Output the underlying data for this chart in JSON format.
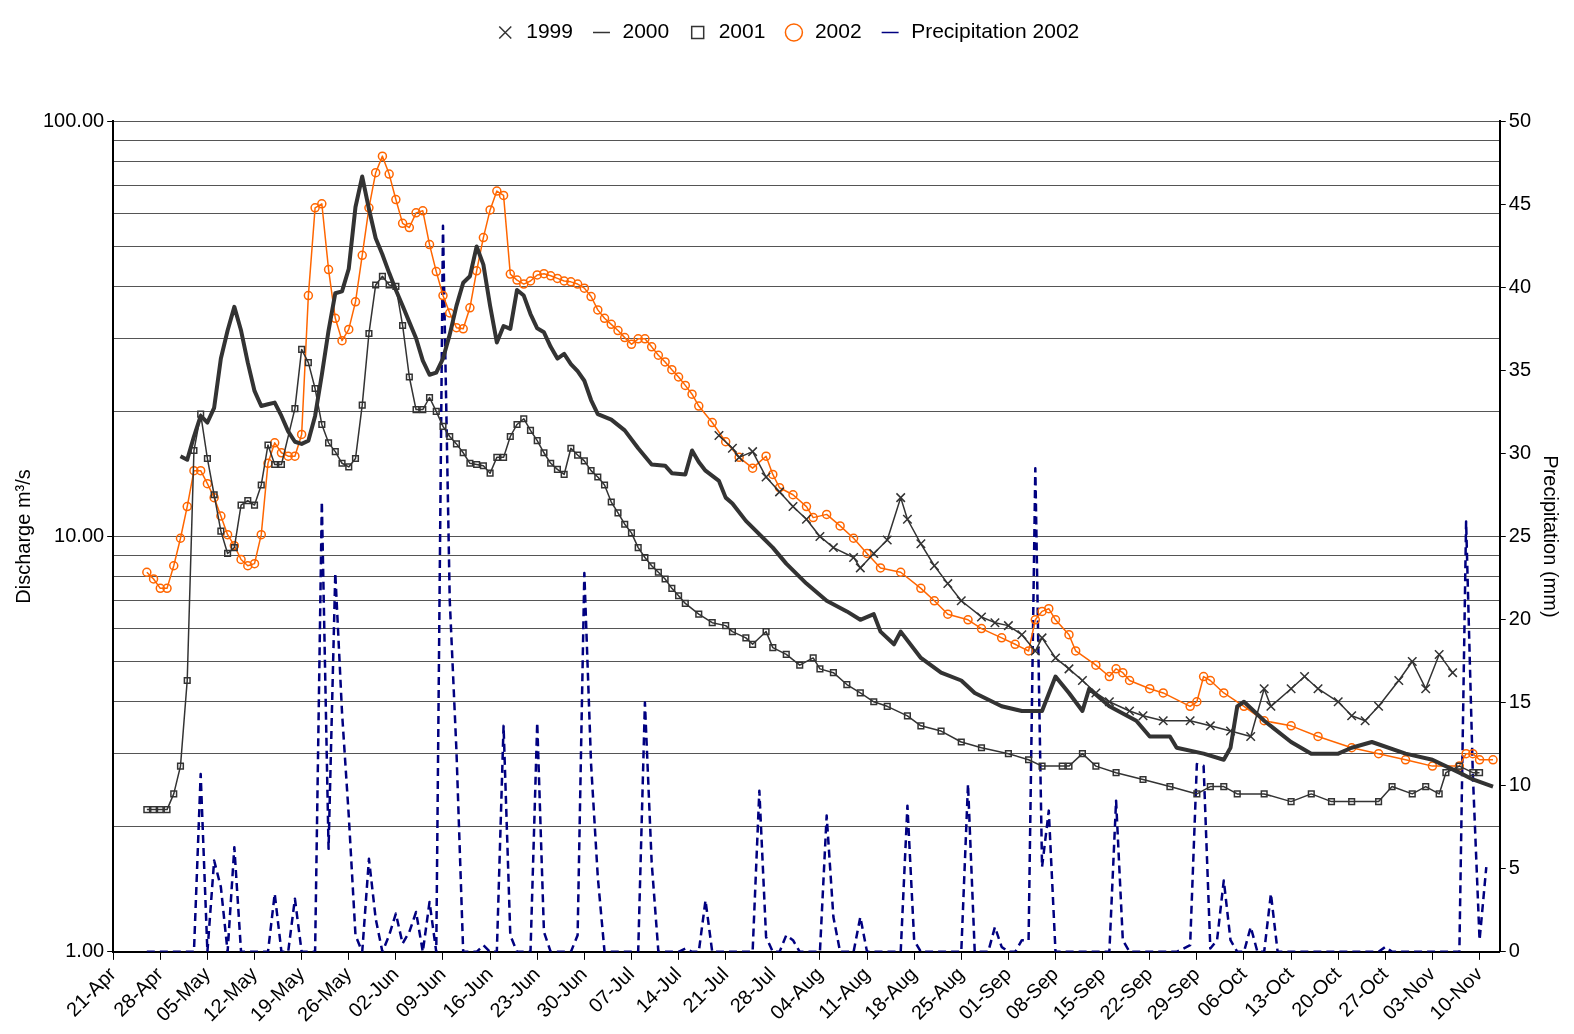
{
  "chart_data": {
    "type": "line",
    "ylabel": "Discharge m³/s",
    "y2label": "Precipitation (mm)",
    "legend": "top",
    "grid": "y",
    "log": "y",
    "xlim": [
      "--04-21",
      "--11-13"
    ],
    "xticks": [
      {
        "value": "--04-21",
        "label": "21-Apr"
      },
      {
        "value": "--04-28",
        "label": "28-Apr"
      },
      {
        "value": "--05-05",
        "label": "05-May"
      },
      {
        "value": "--05-12",
        "label": "12-May"
      },
      {
        "value": "--05-19",
        "label": "19-May"
      },
      {
        "value": "--05-26",
        "label": "26-May"
      },
      {
        "value": "--06-02",
        "label": "02-Jun"
      },
      {
        "value": "--06-09",
        "label": "09-Jun"
      },
      {
        "value": "--06-16",
        "label": "16-Jun"
      },
      {
        "value": "--06-23",
        "label": "23-Jun"
      },
      {
        "value": "--06-30",
        "label": "30-Jun"
      },
      {
        "value": "--07-07",
        "label": "07-Jul"
      },
      {
        "value": "--07-14",
        "label": "14-Jul"
      },
      {
        "value": "--07-21",
        "label": "21-Jul"
      },
      {
        "value": "--07-28",
        "label": "28-Jul"
      },
      {
        "value": "--08-04",
        "label": "04-Aug"
      },
      {
        "value": "--08-11",
        "label": "11-Aug"
      },
      {
        "value": "--08-18",
        "label": "18-Aug"
      },
      {
        "value": "--08-25",
        "label": "25-Aug"
      },
      {
        "value": "--09-01",
        "label": "01-Sep"
      },
      {
        "value": "--09-08",
        "label": "08-Sep"
      },
      {
        "value": "--09-15",
        "label": "15-Sep"
      },
      {
        "value": "--09-22",
        "label": "22-Sep"
      },
      {
        "value": "--09-29",
        "label": "29-Sep"
      },
      {
        "value": "--10-06",
        "label": "06-Oct"
      },
      {
        "value": "--10-13",
        "label": "13-Oct"
      },
      {
        "value": "--10-20",
        "label": "20-Oct"
      },
      {
        "value": "--10-27",
        "label": "27-Oct"
      },
      {
        "value": "--11-03",
        "label": "03-Nov"
      },
      {
        "value": "--11-10",
        "label": "10-Nov"
      }
    ],
    "ylim": [
      1,
      100
    ],
    "yticks": [
      {
        "value": 1,
        "label": "1.00"
      },
      {
        "value": 2,
        "label": null
      },
      {
        "value": 3,
        "label": null
      },
      {
        "value": 4,
        "label": null
      },
      {
        "value": 5,
        "label": null
      },
      {
        "value": 6,
        "label": null
      },
      {
        "value": 7,
        "label": null
      },
      {
        "value": 8,
        "label": null
      },
      {
        "value": 9,
        "label": null
      },
      {
        "value": 10,
        "label": "10.00"
      },
      {
        "value": 20,
        "label": null
      },
      {
        "value": 30,
        "label": null
      },
      {
        "value": 40,
        "label": null
      },
      {
        "value": 50,
        "label": null
      },
      {
        "value": 60,
        "label": null
      },
      {
        "value": 70,
        "label": null
      },
      {
        "value": 80,
        "label": null
      },
      {
        "value": 90,
        "label": null
      },
      {
        "value": 100,
        "label": "100.00"
      }
    ],
    "y2lim": [
      0,
      50
    ],
    "y2ticks": [
      0,
      5,
      10,
      15,
      20,
      25,
      30,
      35,
      40,
      45,
      50
    ],
    "series": [
      {
        "name": "1999",
        "color": "#333333",
        "marker": "cross",
        "x": [
          "--07-20",
          "--07-22",
          "--07-23",
          "--07-25",
          "--07-27",
          "--07-29",
          "--07-31",
          "--08-02",
          "--08-04",
          "--08-06",
          "--08-09",
          "--08-10",
          "--08-12",
          "--08-14",
          "--08-16",
          "--08-17",
          "--08-19",
          "--08-21",
          "--08-23",
          "--08-25",
          "--08-28",
          "--08-30",
          "--09-01",
          "--09-03",
          "--09-05",
          "--09-06",
          "--09-08",
          "--09-10",
          "--09-12",
          "--09-14",
          "--09-16",
          "--09-19",
          "--09-21",
          "--09-24",
          "--09-28",
          "--10-01",
          "--10-04",
          "--10-07",
          "--10-09",
          "--10-10",
          "--10-13",
          "--10-15",
          "--10-17",
          "--10-20",
          "--10-22",
          "--10-24",
          "--10-26",
          "--10-29",
          "--10-31",
          "--11-02",
          "--11-04",
          "--11-06"
        ],
        "values": [
          17.5,
          16.3,
          15.5,
          16.0,
          13.9,
          12.8,
          11.8,
          11.0,
          10.0,
          9.4,
          8.9,
          8.4,
          9.1,
          9.8,
          12.4,
          11.0,
          9.6,
          8.5,
          7.7,
          7.0,
          6.4,
          6.2,
          6.1,
          5.8,
          5.3,
          5.7,
          5.1,
          4.8,
          4.5,
          4.2,
          4.0,
          3.8,
          3.7,
          3.6,
          3.6,
          3.5,
          3.4,
          3.3,
          4.3,
          3.9,
          4.3,
          4.6,
          4.3,
          4.0,
          3.7,
          3.6,
          3.9,
          4.5,
          5.0,
          4.3,
          5.2,
          4.7
        ]
      },
      {
        "name": "2000",
        "color": "#333333",
        "marker": "none",
        "x": [
          "--05-01",
          "--05-02",
          "--05-03",
          "--05-04",
          "--05-05",
          "--05-06",
          "--05-07",
          "--05-08",
          "--05-09",
          "--05-10",
          "--05-11",
          "--05-12",
          "--05-13",
          "--05-14",
          "--05-15",
          "--05-16",
          "--05-17",
          "--05-18",
          "--05-19",
          "--05-20",
          "--05-21",
          "--05-22",
          "--05-23",
          "--05-24",
          "--05-25",
          "--05-26",
          "--05-27",
          "--05-28",
          "--05-29",
          "--05-30",
          "--05-31",
          "--06-01",
          "--06-02",
          "--06-03",
          "--06-04",
          "--06-05",
          "--06-06",
          "--06-07",
          "--06-08",
          "--06-09",
          "--06-10",
          "--06-11",
          "--06-12",
          "--06-13",
          "--06-14",
          "--06-15",
          "--06-16",
          "--06-17",
          "--06-18",
          "--06-19",
          "--06-20",
          "--06-21",
          "--06-22",
          "--06-23",
          "--06-24",
          "--06-25",
          "--06-26",
          "--06-27",
          "--06-28",
          "--06-29",
          "--06-30",
          "--07-01",
          "--07-02",
          "--07-04",
          "--07-06",
          "--07-08",
          "--07-10",
          "--07-12",
          "--07-13",
          "--07-15",
          "--07-16",
          "--07-17",
          "--07-18",
          "--07-20",
          "--07-21",
          "--07-22",
          "--07-24",
          "--07-28",
          "--07-30",
          "--08-02",
          "--08-05",
          "--08-08",
          "--08-10",
          "--08-12",
          "--08-13",
          "--08-15",
          "--08-16",
          "--08-19",
          "--08-22",
          "--08-25",
          "--08-27",
          "--08-31",
          "--09-03",
          "--09-06",
          "--09-08",
          "--09-10",
          "--09-12",
          "--09-13",
          "--09-16",
          "--09-20",
          "--09-22",
          "--09-25",
          "--09-26",
          "--09-30",
          "--10-03",
          "--10-04",
          "--10-05",
          "--10-06",
          "--10-09",
          "--10-13",
          "--10-16",
          "--10-20",
          "--10-22",
          "--10-25",
          "--10-30",
          "--11-03",
          "--11-07",
          "--11-09",
          "--11-12"
        ],
        "values": [
          15.6,
          15.3,
          17.4,
          19.5,
          18.8,
          20.4,
          26.8,
          31.3,
          35.7,
          31.3,
          26.2,
          22.4,
          20.6,
          20.8,
          21.0,
          19.5,
          17.9,
          16.9,
          16.7,
          17.0,
          19.5,
          24.5,
          31.3,
          38.5,
          38.9,
          44.1,
          62.1,
          73.5,
          61.4,
          52.2,
          47.7,
          43.1,
          39.2,
          35.9,
          32.8,
          30.0,
          26.5,
          24.5,
          24.8,
          26.8,
          30.6,
          35.9,
          40.8,
          42.3,
          49.9,
          45.1,
          35.9,
          29.3,
          32.1,
          31.6,
          39.2,
          38.0,
          34.3,
          31.7,
          31.0,
          28.6,
          26.8,
          27.5,
          26.0,
          25.0,
          23.7,
          21.3,
          19.7,
          19.1,
          18.0,
          16.3,
          14.9,
          14.8,
          14.2,
          14.1,
          16.1,
          15.1,
          14.4,
          13.6,
          12.4,
          12.0,
          10.9,
          9.4,
          8.6,
          7.7,
          7.0,
          6.6,
          6.3,
          6.5,
          5.9,
          5.5,
          5.9,
          5.1,
          4.7,
          4.5,
          4.2,
          3.9,
          3.8,
          3.8,
          4.6,
          4.2,
          3.8,
          4.3,
          3.9,
          3.6,
          3.3,
          3.3,
          3.1,
          3.0,
          2.9,
          3.1,
          3.9,
          4.0,
          3.6,
          3.2,
          3.0,
          3.0,
          3.1,
          3.2,
          3.0,
          2.9,
          2.7,
          2.6,
          2.5
        ]
      },
      {
        "name": "2001",
        "color": "#333333",
        "marker": "square",
        "x": [
          "--04-26",
          "--04-27",
          "--04-28",
          "--04-29",
          "--04-30",
          "--05-01",
          "--05-02",
          "--05-03",
          "--05-04",
          "--05-05",
          "--05-06",
          "--05-07",
          "--05-08",
          "--05-09",
          "--05-10",
          "--05-11",
          "--05-12",
          "--05-13",
          "--05-14",
          "--05-15",
          "--05-16",
          "--05-18",
          "--05-19",
          "--05-20",
          "--05-21",
          "--05-22",
          "--05-23",
          "--05-24",
          "--05-25",
          "--05-26",
          "--05-27",
          "--05-28",
          "--05-29",
          "--05-30",
          "--05-31",
          "--06-01",
          "--06-02",
          "--06-03",
          "--06-04",
          "--06-05",
          "--06-06",
          "--06-07",
          "--06-08",
          "--06-09",
          "--06-10",
          "--06-11",
          "--06-12",
          "--06-13",
          "--06-14",
          "--06-15",
          "--06-16",
          "--06-17",
          "--06-18",
          "--06-19",
          "--06-20",
          "--06-21",
          "--06-22",
          "--06-23",
          "--06-24",
          "--06-25",
          "--06-26",
          "--06-27",
          "--06-28",
          "--06-29",
          "--06-30",
          "--07-01",
          "--07-02",
          "--07-03",
          "--07-04",
          "--07-05",
          "--07-06",
          "--07-07",
          "--07-08",
          "--07-09",
          "--07-10",
          "--07-11",
          "--07-12",
          "--07-13",
          "--07-14",
          "--07-15",
          "--07-17",
          "--07-19",
          "--07-21",
          "--07-22",
          "--07-24",
          "--07-25",
          "--07-27",
          "--07-28",
          "--07-30",
          "--08-01",
          "--08-03",
          "--08-04",
          "--08-06",
          "--08-08",
          "--08-10",
          "--08-12",
          "--08-14",
          "--08-17",
          "--08-19",
          "--08-22",
          "--08-25",
          "--08-28",
          "--09-01",
          "--09-04",
          "--09-06",
          "--09-09",
          "--09-10",
          "--09-12",
          "--09-14",
          "--09-17",
          "--09-21",
          "--09-25",
          "--09-29",
          "--10-01",
          "--10-03",
          "--10-05",
          "--10-09",
          "--10-13",
          "--10-16",
          "--10-19",
          "--10-22",
          "--10-26",
          "--10-28",
          "--10-31",
          "--11-02",
          "--11-04",
          "--11-05",
          "--11-07",
          "--11-09",
          "--11-10"
        ],
        "values": [
          2.2,
          2.2,
          2.2,
          2.2,
          2.4,
          2.8,
          4.5,
          16.1,
          19.7,
          15.4,
          12.6,
          10.3,
          9.1,
          9.4,
          11.9,
          12.2,
          11.9,
          13.3,
          16.6,
          14.9,
          14.9,
          20.3,
          28.2,
          26.2,
          22.7,
          18.6,
          16.8,
          16.0,
          15.0,
          14.7,
          15.4,
          20.7,
          30.8,
          40.3,
          42.3,
          40.3,
          40.0,
          32.2,
          24.2,
          20.2,
          20.2,
          21.6,
          20.0,
          18.4,
          17.4,
          16.7,
          15.9,
          15.0,
          14.9,
          14.8,
          14.2,
          15.5,
          15.5,
          17.4,
          18.6,
          19.2,
          18.0,
          17.0,
          15.9,
          15.0,
          14.5,
          14.1,
          16.3,
          15.7,
          15.2,
          14.4,
          13.9,
          13.3,
          12.1,
          11.4,
          10.7,
          10.2,
          9.4,
          8.9,
          8.5,
          8.2,
          7.9,
          7.5,
          7.2,
          6.9,
          6.5,
          6.2,
          6.1,
          5.9,
          5.7,
          5.5,
          5.9,
          5.4,
          5.2,
          4.9,
          5.1,
          4.8,
          4.7,
          4.4,
          4.2,
          4.0,
          3.9,
          3.7,
          3.5,
          3.4,
          3.2,
          3.1,
          3.0,
          2.9,
          2.8,
          2.8,
          2.8,
          3.0,
          2.8,
          2.7,
          2.6,
          2.5,
          2.4,
          2.5,
          2.5,
          2.4,
          2.4,
          2.3,
          2.4,
          2.3,
          2.3,
          2.3,
          2.5,
          2.4,
          2.5,
          2.4,
          2.7,
          2.8,
          2.7,
          2.7
        ]
      },
      {
        "name": "2002",
        "color": "#ff6600",
        "marker": "circle",
        "x": [
          "--04-26",
          "--04-27",
          "--04-28",
          "--04-29",
          "--04-30",
          "--05-01",
          "--05-02",
          "--05-03",
          "--05-04",
          "--05-05",
          "--05-06",
          "--05-07",
          "--05-08",
          "--05-09",
          "--05-10",
          "--05-11",
          "--05-12",
          "--05-13",
          "--05-14",
          "--05-15",
          "--05-16",
          "--05-17",
          "--05-18",
          "--05-19",
          "--05-20",
          "--05-21",
          "--05-22",
          "--05-23",
          "--05-24",
          "--05-25",
          "--05-26",
          "--05-27",
          "--05-28",
          "--05-29",
          "--05-30",
          "--05-31",
          "--06-01",
          "--06-02",
          "--06-03",
          "--06-04",
          "--06-05",
          "--06-06",
          "--06-07",
          "--06-08",
          "--06-09",
          "--06-10",
          "--06-11",
          "--06-12",
          "--06-13",
          "--06-14",
          "--06-15",
          "--06-16",
          "--06-17",
          "--06-18",
          "--06-19",
          "--06-20",
          "--06-21",
          "--06-22",
          "--06-23",
          "--06-24",
          "--06-25",
          "--06-26",
          "--06-27",
          "--06-28",
          "--06-29",
          "--06-30",
          "--07-01",
          "--07-02",
          "--07-03",
          "--07-04",
          "--07-05",
          "--07-06",
          "--07-07",
          "--07-08",
          "--07-09",
          "--07-10",
          "--07-11",
          "--07-12",
          "--07-13",
          "--07-14",
          "--07-15",
          "--07-16",
          "--07-17",
          "--07-19",
          "--07-21",
          "--07-23",
          "--07-25",
          "--07-27",
          "--07-28",
          "--07-29",
          "--07-31",
          "--08-02",
          "--08-03",
          "--08-05",
          "--08-07",
          "--08-09",
          "--08-11",
          "--08-13",
          "--08-16",
          "--08-19",
          "--08-21",
          "--08-23",
          "--08-26",
          "--08-28",
          "--08-31",
          "--09-02",
          "--09-04",
          "--09-05",
          "--09-06",
          "--09-07",
          "--09-08",
          "--09-10",
          "--09-11",
          "--09-14",
          "--09-16",
          "--09-17",
          "--09-18",
          "--09-19",
          "--09-22",
          "--09-24",
          "--09-28",
          "--09-29",
          "--09-30",
          "--10-01",
          "--10-03",
          "--10-06",
          "--10-09",
          "--10-13",
          "--10-17",
          "--10-22",
          "--10-26",
          "--10-30",
          "--11-03",
          "--11-07",
          "--11-08",
          "--11-09",
          "--11-10",
          "--11-12"
        ],
        "values": [
          8.2,
          7.9,
          7.5,
          7.5,
          8.5,
          9.9,
          11.8,
          14.4,
          14.4,
          13.4,
          12.4,
          11.2,
          10.1,
          9.5,
          8.8,
          8.5,
          8.6,
          10.1,
          15.0,
          16.8,
          15.9,
          15.6,
          15.6,
          17.6,
          38.0,
          61.8,
          63.2,
          43.9,
          33.5,
          29.6,
          31.5,
          36.7,
          47.5,
          61.8,
          75.1,
          82.3,
          74.5,
          64.7,
          56.7,
          55.4,
          60.1,
          60.8,
          50.4,
          43.4,
          38.0,
          34.5,
          31.8,
          31.6,
          35.5,
          43.6,
          52.4,
          61.1,
          67.8,
          66.2,
          42.8,
          41.4,
          40.5,
          41.2,
          42.6,
          42.9,
          42.4,
          41.8,
          41.2,
          41.0,
          40.5,
          39.6,
          37.8,
          35.1,
          33.5,
          32.4,
          31.3,
          30.1,
          29.0,
          29.9,
          29.9,
          28.6,
          27.3,
          26.3,
          25.2,
          24.2,
          23.1,
          22.0,
          20.6,
          18.8,
          16.9,
          15.5,
          14.6,
          15.6,
          14.1,
          13.1,
          12.6,
          11.8,
          11.1,
          11.3,
          10.6,
          9.9,
          9.1,
          8.4,
          8.2,
          7.5,
          7.0,
          6.5,
          6.3,
          6.0,
          5.7,
          5.5,
          5.3,
          6.3,
          6.6,
          6.7,
          6.3,
          5.8,
          5.3,
          4.9,
          4.6,
          4.8,
          4.7,
          4.5,
          4.3,
          4.2,
          3.9,
          4.0,
          4.6,
          4.5,
          4.2,
          3.9,
          3.6,
          3.5,
          3.3,
          3.1,
          3.0,
          2.9,
          2.8,
          2.8,
          3.0,
          3.0,
          2.9,
          2.9
        ]
      },
      {
        "name": "Precipitation 2002",
        "color": "#000080",
        "marker": "none",
        "line_style": "dashed",
        "axis": "y2",
        "x": [
          "--04-26",
          "--05-03",
          "--05-04",
          "--05-05",
          "--05-06",
          "--05-07",
          "--05-08",
          "--05-09",
          "--05-10",
          "--05-14",
          "--05-15",
          "--05-16",
          "--05-17",
          "--05-18",
          "--05-19",
          "--05-21",
          "--05-22",
          "--05-23",
          "--05-24",
          "--05-25",
          "--05-26",
          "--05-27",
          "--05-28",
          "--05-29",
          "--05-30",
          "--05-31",
          "--06-01",
          "--06-02",
          "--06-03",
          "--06-04",
          "--06-05",
          "--06-06",
          "--06-07",
          "--06-08",
          "--06-09",
          "--06-10",
          "--06-11",
          "--06-12",
          "--06-14",
          "--06-15",
          "--06-16",
          "--06-17",
          "--06-18",
          "--06-19",
          "--06-20",
          "--06-22",
          "--06-23",
          "--06-24",
          "--06-25",
          "--06-28",
          "--06-29",
          "--06-30",
          "--07-01",
          "--07-02",
          "--07-03",
          "--07-08",
          "--07-09",
          "--07-10",
          "--07-11",
          "--07-14",
          "--07-15",
          "--07-16",
          "--07-17",
          "--07-18",
          "--07-19",
          "--07-25",
          "--07-26",
          "--07-27",
          "--07-28",
          "--07-29",
          "--07-30",
          "--07-31",
          "--08-01",
          "--08-04",
          "--08-05",
          "--08-06",
          "--08-07",
          "--08-09",
          "--08-10",
          "--08-11",
          "--08-16",
          "--08-17",
          "--08-18",
          "--08-19",
          "--08-25",
          "--08-26",
          "--08-27",
          "--08-29",
          "--08-30",
          "--08-31",
          "--09-01",
          "--09-02",
          "--09-03",
          "--09-04",
          "--09-05",
          "--09-06",
          "--09-07",
          "--09-08",
          "--09-16",
          "--09-17",
          "--09-18",
          "--09-19",
          "--09-26",
          "--09-27",
          "--09-28",
          "--09-29",
          "--09-30",
          "--10-01",
          "--10-02",
          "--10-03",
          "--10-04",
          "--10-05",
          "--10-06",
          "--10-07",
          "--10-08",
          "--10-09",
          "--10-10",
          "--10-11",
          "--10-26",
          "--10-27",
          "--10-28",
          "--11-07",
          "--11-08",
          "--11-09",
          "--11-10",
          "--11-11"
        ],
        "values": [
          0,
          0,
          10.7,
          0,
          5.5,
          3.9,
          0,
          6.3,
          0,
          0,
          3.5,
          0,
          0,
          3.2,
          0,
          0,
          27.1,
          6.2,
          22.8,
          14.4,
          8.2,
          1.0,
          0,
          5.6,
          2.0,
          0,
          1.0,
          2.3,
          0.5,
          1.2,
          2.4,
          0,
          3.0,
          0,
          43.7,
          21.2,
          12.1,
          0,
          0,
          0.4,
          0,
          0,
          13.6,
          1.0,
          0,
          0,
          13.8,
          1.2,
          0,
          0,
          1.0,
          22.8,
          11.3,
          4.5,
          0,
          0,
          15.0,
          5.4,
          0,
          0,
          0.2,
          0,
          0,
          3.1,
          0,
          0,
          9.7,
          0.9,
          0,
          0,
          1.0,
          0.7,
          0,
          0,
          8.2,
          2.1,
          0,
          0,
          2.1,
          0,
          0,
          8.8,
          0.7,
          0,
          0,
          10.1,
          0,
          0,
          1.5,
          0.3,
          0,
          0,
          0.7,
          0.7,
          29.1,
          5.1,
          8.5,
          0,
          0,
          9.1,
          0.7,
          0,
          0,
          0.2,
          0.4,
          11.3,
          11.2,
          0.2,
          0.7,
          4.3,
          0.7,
          0,
          0,
          1.5,
          0,
          0,
          3.5,
          0,
          0,
          0.3,
          0,
          0,
          25.9,
          10.7,
          0.7,
          5.1
        ]
      }
    ]
  }
}
